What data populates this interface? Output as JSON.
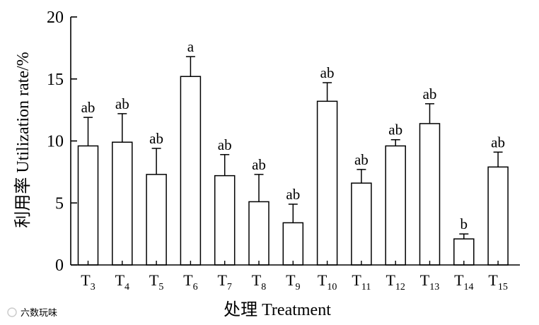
{
  "chart_data": {
    "type": "bar",
    "categories": [
      {
        "main": "T",
        "sub": "3"
      },
      {
        "main": "T",
        "sub": "4"
      },
      {
        "main": "T",
        "sub": "5"
      },
      {
        "main": "T",
        "sub": "6"
      },
      {
        "main": "T",
        "sub": "7"
      },
      {
        "main": "T",
        "sub": "8"
      },
      {
        "main": "T",
        "sub": "9"
      },
      {
        "main": "T",
        "sub": "10"
      },
      {
        "main": "T",
        "sub": "11"
      },
      {
        "main": "T",
        "sub": "12"
      },
      {
        "main": "T",
        "sub": "13"
      },
      {
        "main": "T",
        "sub": "14"
      },
      {
        "main": "T",
        "sub": "15"
      }
    ],
    "values": [
      9.6,
      9.9,
      7.3,
      15.2,
      7.2,
      5.1,
      3.4,
      13.2,
      6.6,
      9.6,
      11.4,
      2.1,
      7.9
    ],
    "errors": [
      2.3,
      2.3,
      2.1,
      1.6,
      1.7,
      2.2,
      1.5,
      1.5,
      1.1,
      0.5,
      1.6,
      0.4,
      1.2
    ],
    "significance": [
      "ab",
      "ab",
      "ab",
      "a",
      "ab",
      "ab",
      "ab",
      "ab",
      "ab",
      "ab",
      "ab",
      "b",
      "ab"
    ],
    "xlabel": "处理 Treatment",
    "ylabel": "利用率 Utilization rate/%",
    "ylim": [
      0,
      20
    ],
    "yticks": [
      0,
      5,
      10,
      15,
      20
    ],
    "grid": false,
    "bar_fill": "#ffffff",
    "stroke_color": "#000000"
  },
  "watermark": "六数玩味"
}
